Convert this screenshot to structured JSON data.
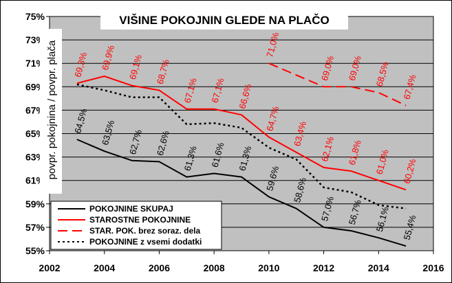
{
  "chart_data": {
    "type": "line",
    "title": "VIŠINE POKOJNIN GLEDE NA PLAČO",
    "ylabel": "povpr. pokojnina / povpr. plača",
    "xlabel": "",
    "xlim": [
      2002,
      2016
    ],
    "ylim": [
      55,
      75
    ],
    "x_ticks": [
      "2002",
      "2004",
      "2006",
      "2008",
      "2010",
      "2012",
      "2014",
      "2016"
    ],
    "x_tick_values": [
      2002,
      2004,
      2006,
      2008,
      2010,
      2012,
      2014,
      2016
    ],
    "y_ticks": [
      "55%",
      "57%",
      "59%",
      "61%",
      "63%",
      "65%",
      "67%",
      "69%",
      "71%",
      "73%",
      "75%"
    ],
    "y_tick_values": [
      55,
      57,
      59,
      61,
      63,
      65,
      67,
      69,
      71,
      73,
      75
    ],
    "grid": true,
    "legend_position": "bottom-left",
    "series": [
      {
        "name": "POKOJNINE SKUPAJ",
        "color": "#000000",
        "style": "solid",
        "x": [
          2003,
          2004,
          2005,
          2006,
          2007,
          2008,
          2009,
          2010,
          2011,
          2012,
          2013,
          2014,
          2015
        ],
        "values": [
          64.5,
          63.5,
          62.7,
          62.6,
          61.3,
          61.6,
          61.3,
          59.6,
          58.6,
          57.0,
          56.7,
          56.1,
          55.4
        ],
        "labels": [
          "64,5%",
          "63,5%",
          "62,7%",
          "62,6%",
          "61,3%",
          "61,6%",
          "61,3%",
          "59,6%",
          "58,6%",
          "57,0%",
          "56,7%",
          "56,1%",
          "55,4%"
        ]
      },
      {
        "name": "STAROSTNE POKOJNINE",
        "color": "#ff0000",
        "style": "solid",
        "x": [
          2003,
          2004,
          2005,
          2006,
          2007,
          2008,
          2009,
          2010,
          2011,
          2012,
          2013,
          2014,
          2015
        ],
        "values": [
          69.3,
          69.9,
          69.1,
          68.7,
          67.1,
          67.1,
          66.6,
          64.7,
          63.4,
          62.1,
          61.8,
          61.0,
          60.2
        ],
        "labels": [
          "69,3%",
          "69,9%",
          "69,1%",
          "68,7%",
          "67,1%",
          "67,1%",
          "66,6%",
          "64,7%",
          "63,4%",
          "62,1%",
          "61,8%",
          "61,0%",
          "60,2%"
        ]
      },
      {
        "name": "STAR. POK. brez soraz. dela",
        "color": "#ff0000",
        "style": "dashed",
        "x": [
          2010,
          2011,
          2012,
          2013,
          2014,
          2015
        ],
        "values": [
          71.0,
          70.0,
          69.0,
          69.0,
          68.5,
          67.4
        ],
        "labels": [
          "71,0%",
          "",
          "69,0%",
          "69,0%",
          "68,5%",
          "67,4%"
        ]
      },
      {
        "name": "POKOJNINE z vsemi dodatki",
        "color": "#000000",
        "style": "dotted",
        "x": [
          2003,
          2004,
          2005,
          2006,
          2007,
          2008,
          2009,
          2010,
          2011,
          2012,
          2013,
          2014,
          2015
        ],
        "values": [
          69.2,
          68.7,
          68.1,
          68.1,
          65.8,
          65.9,
          65.5,
          63.8,
          62.8,
          60.4,
          60.0,
          58.9,
          58.6
        ],
        "labels": []
      }
    ]
  }
}
